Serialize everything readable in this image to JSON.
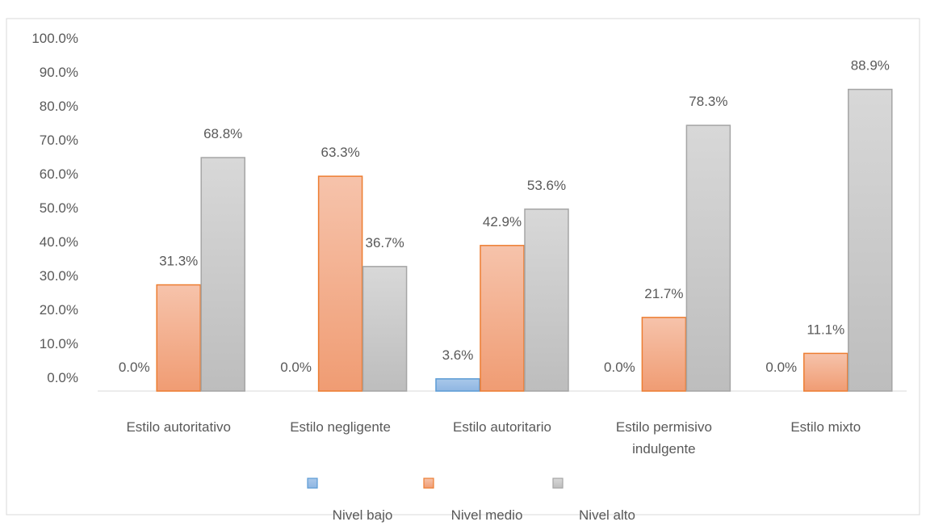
{
  "chart_data": {
    "type": "bar",
    "title": "",
    "xlabel": "",
    "ylabel": "",
    "ylim": [
      0,
      100
    ],
    "y_ticks": [
      "0.0%",
      "10.0%",
      "20.0%",
      "30.0%",
      "40.0%",
      "50.0%",
      "60.0%",
      "70.0%",
      "80.0%",
      "90.0%",
      "100.0%"
    ],
    "grid": false,
    "legend_position": "bottom",
    "categories": [
      [
        "Estilo autoritativo"
      ],
      [
        "Estilo negligente"
      ],
      [
        "Estilo autoritario"
      ],
      [
        "Estilo permisivo",
        "indulgente"
      ],
      [
        "Estilo mixto"
      ]
    ],
    "series": [
      {
        "name": "Nivel bajo",
        "color": "#5b9bd5",
        "values": [
          0.0,
          0.0,
          3.6,
          0.0,
          0.0
        ],
        "labels": [
          "0.0%",
          "0.0%",
          "3.6%",
          "0.0%",
          "0.0%"
        ]
      },
      {
        "name": "Nivel medio",
        "color": "#ed7d31",
        "values": [
          31.3,
          63.3,
          42.9,
          21.7,
          11.1
        ],
        "labels": [
          "31.3%",
          "63.3%",
          "42.9%",
          "21.7%",
          "11.1%"
        ]
      },
      {
        "name": "Nivel alto",
        "color": "#a5a5a5",
        "values": [
          68.8,
          36.7,
          53.6,
          78.3,
          88.9
        ],
        "labels": [
          "68.8%",
          "36.7%",
          "53.6%",
          "78.3%",
          "88.9%"
        ]
      }
    ]
  }
}
